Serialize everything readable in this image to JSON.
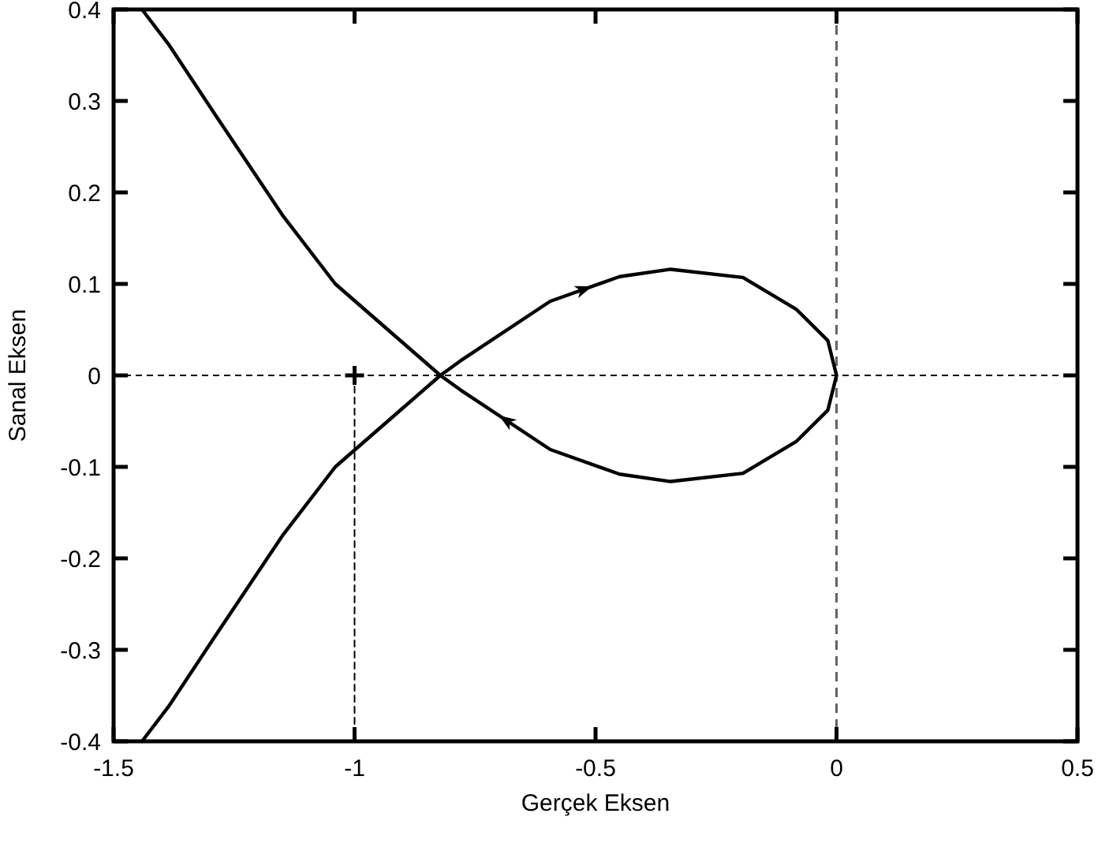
{
  "chart_data": {
    "type": "line",
    "xlabel": "Gerçek Eksen",
    "ylabel": "Sanal Eksen",
    "xlim": [
      -1.5,
      0.5
    ],
    "ylim": [
      -0.4,
      0.4
    ],
    "xticks": [
      -1.5,
      -1,
      -0.5,
      0,
      0.5
    ],
    "yticks": [
      -0.4,
      -0.3,
      -0.2,
      -0.1,
      0,
      0.1,
      0.2,
      0.3,
      0.4
    ],
    "grid": false,
    "ref_lines": [
      {
        "axis": "x",
        "value": 0,
        "color": "#666666",
        "line_style": "dashed"
      },
      {
        "axis": "y",
        "value": 0,
        "color": "#000000",
        "line_style": "dashed"
      }
    ],
    "series": [
      {
        "color": "#000000",
        "line_style": "solid",
        "x": [
          -1.441,
          -1.386,
          -1.288,
          -1.148,
          -1.04,
          -0.822,
          -0.78,
          -0.594,
          -0.45,
          -0.344,
          -0.194,
          -0.083,
          -0.018,
          0,
          -0.018,
          -0.083,
          -0.194,
          -0.344,
          -0.45,
          -0.594,
          -0.78,
          -0.822,
          -1.04,
          -1.148,
          -1.288,
          -1.386,
          -1.441
        ],
        "values": [
          -0.4,
          -0.362,
          -0.284,
          -0.174,
          -0.1,
          0,
          0.016,
          0.081,
          0.108,
          0.116,
          0.107,
          0.072,
          0.038,
          0,
          -0.038,
          -0.072,
          -0.107,
          -0.116,
          -0.108,
          -0.081,
          -0.016,
          0,
          0.1,
          0.174,
          0.284,
          0.362,
          0.4
        ]
      },
      {
        "type": "line",
        "color": "#000000",
        "line_style": "dashed",
        "x": [
          -1,
          -1
        ],
        "values": [
          0,
          -0.4
        ]
      },
      {
        "type": "scatter",
        "color": "#000000",
        "marker": "cross",
        "x": [
          -1
        ],
        "values": [
          0
        ]
      }
    ]
  }
}
